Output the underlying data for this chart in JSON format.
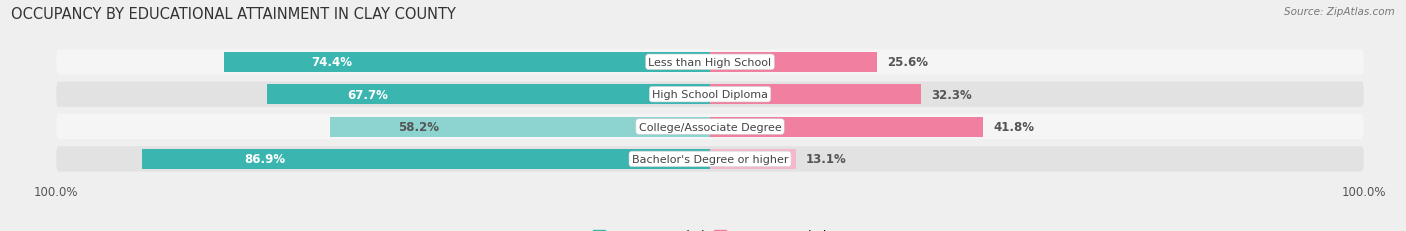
{
  "title": "OCCUPANCY BY EDUCATIONAL ATTAINMENT IN CLAY COUNTY",
  "source": "Source: ZipAtlas.com",
  "categories": [
    "Less than High School",
    "High School Diploma",
    "College/Associate Degree",
    "Bachelor's Degree or higher"
  ],
  "owner_pct": [
    74.4,
    67.7,
    58.2,
    86.9
  ],
  "renter_pct": [
    25.6,
    32.3,
    41.8,
    13.1
  ],
  "owner_color_dark": "#3ab5b0",
  "owner_color_light": "#8dd4d1",
  "renter_color_dark": "#f07fa0",
  "renter_color_light": "#f5b8cb",
  "background_color": "#efefef",
  "row_bg_color": "#e2e2e2",
  "row_bg_alt": "#f5f5f5",
  "title_fontsize": 10.5,
  "label_fontsize": 8.5,
  "tick_fontsize": 8.5,
  "source_fontsize": 7.5,
  "legend_fontsize": 8.5
}
